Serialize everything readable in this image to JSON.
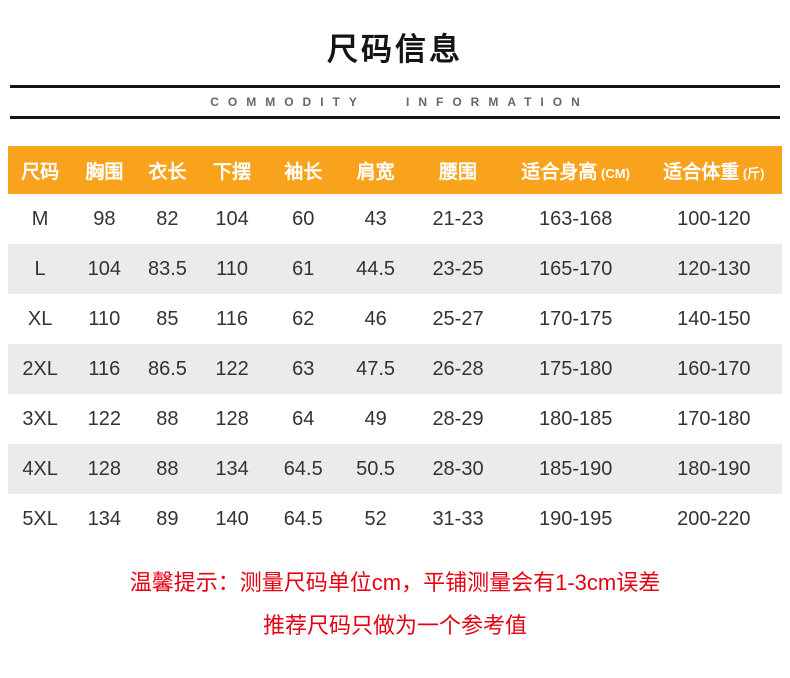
{
  "page": {
    "title": "尺码信息",
    "subtitle": "COMMODITY INFORMATION"
  },
  "table": {
    "headers": [
      {
        "label": "尺码",
        "unit": ""
      },
      {
        "label": "胸围",
        "unit": ""
      },
      {
        "label": "衣长",
        "unit": ""
      },
      {
        "label": "下摆",
        "unit": ""
      },
      {
        "label": "袖长",
        "unit": ""
      },
      {
        "label": "肩宽",
        "unit": ""
      },
      {
        "label": "腰围",
        "unit": ""
      },
      {
        "label": "适合身高",
        "unit": "(CM)"
      },
      {
        "label": "适合体重",
        "unit": "(斤)"
      }
    ],
    "rows": [
      [
        "M",
        "98",
        "82",
        "104",
        "60",
        "43",
        "21-23",
        "163-168",
        "100-120"
      ],
      [
        "L",
        "104",
        "83.5",
        "110",
        "61",
        "44.5",
        "23-25",
        "165-170",
        "120-130"
      ],
      [
        "XL",
        "110",
        "85",
        "116",
        "62",
        "46",
        "25-27",
        "170-175",
        "140-150"
      ],
      [
        "2XL",
        "116",
        "86.5",
        "122",
        "63",
        "47.5",
        "26-28",
        "175-180",
        "160-170"
      ],
      [
        "3XL",
        "122",
        "88",
        "128",
        "64",
        "49",
        "28-29",
        "180-185",
        "170-180"
      ],
      [
        "4XL",
        "128",
        "88",
        "134",
        "64.5",
        "50.5",
        "28-30",
        "185-190",
        "180-190"
      ],
      [
        "5XL",
        "134",
        "89",
        "140",
        "64.5",
        "52",
        "31-33",
        "190-195",
        "200-220"
      ]
    ]
  },
  "notice": {
    "line1": "温馨提示：测量尺码单位cm，平铺测量会有1-3cm误差",
    "line2": "推荐尺码只做为一个参考值"
  },
  "colors": {
    "header_bg": "#F9A21C",
    "row_alt_bg": "#EBEBEB",
    "divider": "#141414",
    "notice_text": "#E60012"
  }
}
